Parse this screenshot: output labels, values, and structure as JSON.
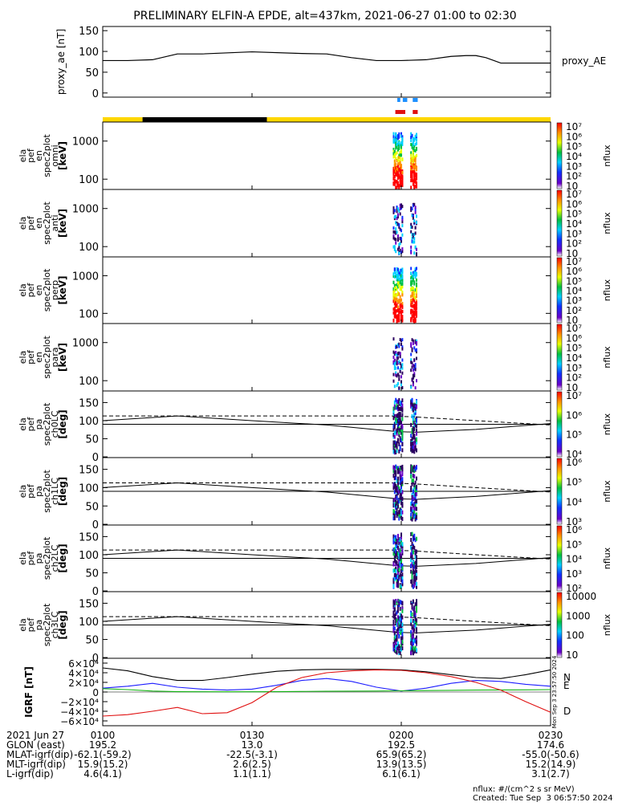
{
  "title": "PRELIMINARY ELFIN-A EPDE, alt=437km, 2021-06-27 01:00 to 02:30",
  "chart_data": [
    {
      "type": "line",
      "name": "proxy_ae",
      "ylabel": "proxy_ae [nT]",
      "right_label": "proxy_AE",
      "ylim": [
        -10,
        160
      ],
      "yticks": [
        "150",
        "100",
        "50",
        "0"
      ],
      "x_minutes": [
        0,
        5,
        10,
        15,
        20,
        30,
        40,
        45,
        50,
        55,
        60,
        65,
        70,
        73,
        75,
        77,
        80,
        85,
        90
      ],
      "values": [
        78,
        78,
        80,
        94,
        94,
        99,
        95,
        94,
        85,
        78,
        78,
        80,
        88,
        90,
        90,
        85,
        72,
        72,
        72
      ]
    },
    {
      "type": "heatmap",
      "name": "elx_pef_en_spec2plot_omni",
      "ylabel": [
        "ela",
        "pef",
        "en",
        "spec2plot",
        "omni",
        "[keV]"
      ],
      "yscale": "log",
      "yticks": [
        "1000",
        "100"
      ],
      "colorbar": {
        "label": "nflux",
        "ticks": [
          "10⁷",
          "10⁶",
          "10⁵",
          "10⁴",
          "10³",
          "10²",
          "10"
        ]
      }
    },
    {
      "type": "heatmap",
      "name": "elx_pef_en_spec2plot_anti",
      "ylabel": [
        "ela",
        "pef",
        "en",
        "spec2plot",
        "anti",
        "[keV]"
      ],
      "yscale": "log",
      "yticks": [
        "1000",
        "100"
      ],
      "colorbar": {
        "label": "nflux",
        "ticks": [
          "10⁷",
          "10⁶",
          "10⁵",
          "10⁴",
          "10³",
          "10²",
          "10"
        ]
      }
    },
    {
      "type": "heatmap",
      "name": "elx_pef_en_spec2plot_perp",
      "ylabel": [
        "ela",
        "pef",
        "en",
        "spec2plot",
        "perp",
        "[keV]"
      ],
      "yscale": "log",
      "yticks": [
        "1000",
        "100"
      ],
      "colorbar": {
        "label": "nflux",
        "ticks": [
          "10⁷",
          "10⁶",
          "10⁵",
          "10⁴",
          "10³",
          "10²",
          "10"
        ]
      }
    },
    {
      "type": "heatmap",
      "name": "elx_pef_en_spec2plot_para",
      "ylabel": [
        "ela",
        "pef",
        "en",
        "spec2plot",
        "para",
        "[keV]"
      ],
      "yscale": "log",
      "yticks": [
        "1000",
        "100"
      ],
      "colorbar": {
        "label": "nflux",
        "ticks": [
          "10⁷",
          "10⁶",
          "10⁵",
          "10⁴",
          "10³",
          "10²",
          "10"
        ]
      }
    },
    {
      "type": "heatmap",
      "name": "elx_pef_pa_spec2plot_ch0LC",
      "ylabel": [
        "ela",
        "pef",
        "pa",
        "spec2plot",
        "ch0LC",
        "[deg]"
      ],
      "yticks": [
        "150",
        "100",
        "50",
        "0"
      ],
      "colorbar": {
        "label": "nflux",
        "ticks": [
          "10⁷",
          "10⁶",
          "10⁵",
          "10⁴"
        ]
      }
    },
    {
      "type": "heatmap",
      "name": "elx_pef_pa_spec2plot_ch1LC",
      "ylabel": [
        "ela",
        "pef",
        "pa",
        "spec2plot",
        "ch1LC",
        "[deg]"
      ],
      "yticks": [
        "150",
        "100",
        "50",
        "0"
      ],
      "colorbar": {
        "label": "nflux",
        "ticks": [
          "10⁶",
          "10⁵",
          "10⁴",
          "10³"
        ]
      }
    },
    {
      "type": "heatmap",
      "name": "elx_pef_pa_spec2plot_ch2LC",
      "ylabel": [
        "ela",
        "pef",
        "pa",
        "spec2plot",
        "ch2LC",
        "[deg]"
      ],
      "yticks": [
        "150",
        "100",
        "50",
        "0"
      ],
      "colorbar": {
        "label": "nflux",
        "ticks": [
          "10⁶",
          "10⁵",
          "10⁴",
          "10³",
          "10²"
        ]
      }
    },
    {
      "type": "heatmap",
      "name": "elx_pef_pa_spec2plot_ch3LC",
      "ylabel": [
        "ela",
        "pef",
        "pa",
        "spec2plot",
        "ch3LC",
        "[deg]"
      ],
      "yticks": [
        "150",
        "100",
        "50",
        "0"
      ],
      "colorbar": {
        "label": "nflux",
        "ticks": [
          "10000",
          "1000",
          "100",
          "10"
        ]
      }
    },
    {
      "type": "line",
      "name": "IGRF",
      "ylabel": "IGRF [nT]",
      "ylim": [
        -70000,
        70000
      ],
      "yticks": [
        "6×10⁴",
        "4×10⁴",
        "2×10⁴",
        "0",
        "−2×10⁴",
        "−4×10⁴",
        "−6×10⁴"
      ],
      "x_minutes": [
        0,
        5,
        10,
        15,
        20,
        25,
        30,
        35,
        40,
        45,
        50,
        55,
        60,
        65,
        70,
        75,
        80,
        85,
        90
      ],
      "series": [
        {
          "name": "N",
          "color": "#1c1cff",
          "values": [
            8000,
            12000,
            18000,
            10000,
            6000,
            4000,
            6000,
            14000,
            24000,
            28000,
            22000,
            10000,
            2000,
            8000,
            18000,
            24000,
            22000,
            16000,
            12000
          ]
        },
        {
          "name": "E",
          "color": "#14b414",
          "values": [
            7000,
            5000,
            2000,
            800,
            500,
            500,
            600,
            800,
            1200,
            1500,
            1800,
            2000,
            2500,
            3000,
            3500,
            4000,
            4200,
            4500,
            5000
          ]
        },
        {
          "name": "D",
          "color": "#e01010",
          "values": [
            -50000,
            -47000,
            -40000,
            -32000,
            -45000,
            -43000,
            -22000,
            10000,
            30000,
            40000,
            44000,
            46000,
            45000,
            40000,
            32000,
            20000,
            4000,
            -20000,
            -42000
          ]
        }
      ],
      "extra_series_unlabeled": [
        {
          "color": "#000000",
          "values": [
            50000,
            44000,
            32000,
            24000,
            24000,
            30000,
            37000,
            43000,
            46000,
            47000,
            47000,
            47000,
            46000,
            42000,
            36000,
            30000,
            28000,
            36000,
            46000
          ]
        }
      ],
      "side_text": "Mon Sep  3 23:57:50 2024"
    }
  ],
  "bars": {
    "top_marks": [
      {
        "color": "#1e90ff",
        "row": "upper",
        "t_start": 59.2,
        "t_end": 59.8
      },
      {
        "color": "#1e90ff",
        "row": "upper",
        "t_start": 60.3,
        "t_end": 61.2
      },
      {
        "color": "#1e90ff",
        "row": "upper",
        "t_start": 62.3,
        "t_end": 63.3
      },
      {
        "color": "#e01010",
        "row": "lower",
        "t_start": 58.8,
        "t_end": 60.8
      },
      {
        "color": "#e01010",
        "row": "lower",
        "t_start": 62.3,
        "t_end": 63.3
      }
    ],
    "orbit_segments": [
      {
        "color": "#ffd700",
        "t_start": 0,
        "t_end": 8
      },
      {
        "color": "#000000",
        "t_start": 8,
        "t_end": 33
      },
      {
        "color": "#ffd700",
        "t_start": 33,
        "t_end": 90
      }
    ]
  },
  "x_axis": {
    "ticks": [
      {
        "minute": 0,
        "label": "0100"
      },
      {
        "minute": 30,
        "label": "0130"
      },
      {
        "minute": 60,
        "label": "0200"
      },
      {
        "minute": 90,
        "label": "0230"
      }
    ]
  },
  "footer": {
    "rows": [
      {
        "label": "2021 Jun 27",
        "values": [
          "0100",
          "0130",
          "0200",
          "0230"
        ]
      },
      {
        "label": "GLON (east)",
        "values": [
          "195.2",
          "13.0",
          "192.5",
          "174.6"
        ]
      },
      {
        "label": "MLAT-igrf(dip)",
        "values": [
          "-62.1(-59.2)",
          "-22.5(-3.1)",
          "65.9(65.2)",
          "-55.0(-50.6)"
        ]
      },
      {
        "label": "MLT-igrf(dip)",
        "values": [
          "15.9(15.2)",
          "2.6(2.5)",
          "13.9(13.5)",
          "15.2(14.9)"
        ]
      },
      {
        "label": "L-igrf(dip)",
        "values": [
          "4.6(4.1)",
          "1.1(1.1)",
          "6.1(6.1)",
          "3.1(2.7)"
        ]
      }
    ],
    "units_note": "nflux: #/(cm^2 s sr MeV)",
    "created": "Created: Tue Sep  3 06:57:50 2024"
  }
}
